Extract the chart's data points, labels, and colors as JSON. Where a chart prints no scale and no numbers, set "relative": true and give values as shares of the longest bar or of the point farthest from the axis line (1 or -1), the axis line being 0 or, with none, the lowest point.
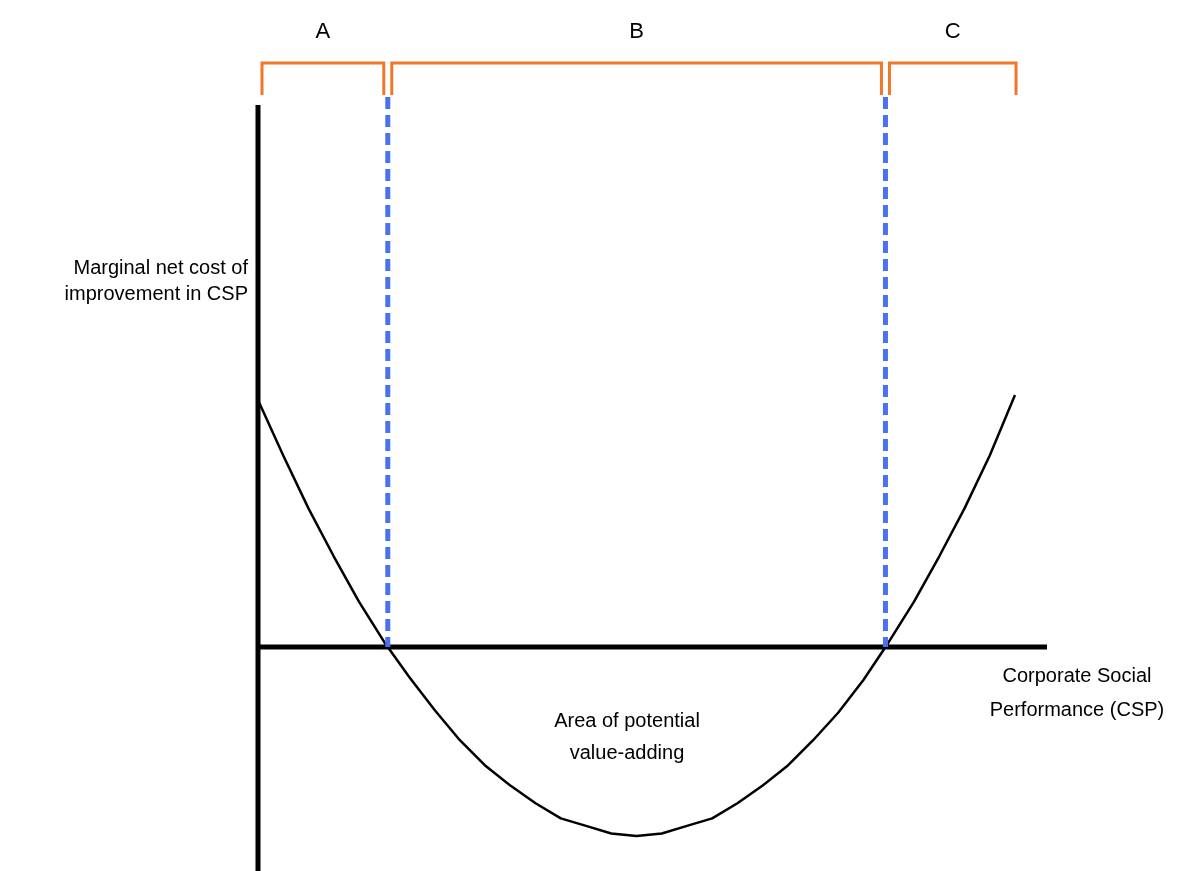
{
  "chart_data": {
    "type": "line",
    "relative": true,
    "line_style": "solid",
    "xlabel": "Corporate Social Performance (CSP)",
    "ylabel": "Marginal net cost of improvement in CSP",
    "annotations": [
      "A",
      "B",
      "C",
      "Area of potential value-adding"
    ],
    "categories": [
      null,
      null,
      null,
      null,
      null,
      null,
      null,
      null,
      null,
      null,
      null,
      null,
      null,
      null,
      null,
      null,
      null,
      null,
      null,
      null,
      null,
      null,
      null,
      null,
      null,
      null,
      null,
      null,
      null,
      null,
      null
    ],
    "series": [
      {
        "color": "#000000",
        "values": [
          0.98,
          0.76,
          0.55,
          0.36,
          0.18,
          0.02,
          -0.12,
          -0.25,
          -0.37,
          -0.47,
          -0.55,
          -0.62,
          -0.68,
          -0.71,
          -0.74,
          -0.75,
          -0.74,
          -0.71,
          -0.68,
          -0.62,
          -0.55,
          -0.47,
          -0.37,
          -0.26,
          -0.13,
          0.02,
          0.18,
          0.36,
          0.55,
          0.76,
          1.0
        ]
      }
    ]
  }
}
